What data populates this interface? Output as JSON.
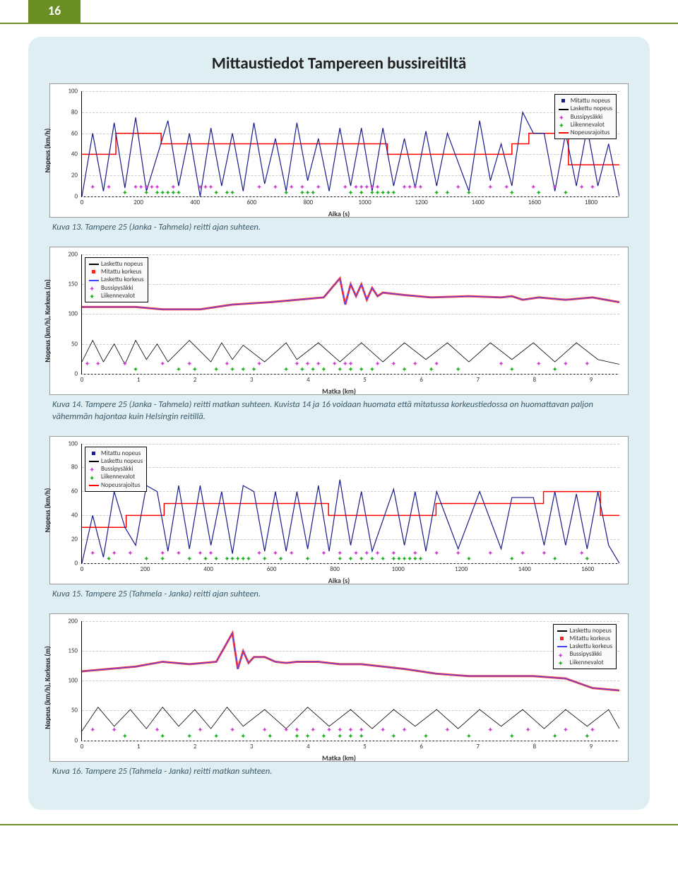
{
  "page_number": "16",
  "colors": {
    "page_accent": "#6b8e23",
    "panel_bg": "#dfeef2",
    "caption_color": "#3a5a6a",
    "speed_limit": "#ff0000",
    "measured_speed": "#1a1a8a",
    "calculated_speed": "#000000",
    "bus_stop": "#d040d0",
    "traffic_light": "#20b020",
    "measured_height": "#ff2020",
    "calculated_height": "#4040ff"
  },
  "title": "Mittaustiedot Tampereen bussireitiltä",
  "chart13": {
    "ylabel": "Nopeus (km/h)",
    "xlabel": "Aika (s)",
    "ylim": [
      0,
      100
    ],
    "ytick_step": 20,
    "xlim": [
      0,
      1900
    ],
    "xticks": [
      0,
      200,
      400,
      600,
      800,
      1000,
      1200,
      1400,
      1600,
      1800
    ],
    "legend_pos": "top-right",
    "legend": [
      {
        "type": "dot",
        "color": "#1a1a8a",
        "label": "Mitattu nopeus"
      },
      {
        "type": "line",
        "color": "#000000",
        "label": "Laskettu nopeus"
      },
      {
        "type": "star",
        "color": "#d040d0",
        "label": "Bussipysäkki"
      },
      {
        "type": "star",
        "color": "#20b020",
        "label": "Liikennevalot"
      },
      {
        "type": "line",
        "color": "#ff0000",
        "label": "Nopeusrajoitus"
      }
    ],
    "speed_limit_segments": [
      {
        "x0": 0,
        "x1": 120,
        "y": 40
      },
      {
        "x0": 120,
        "x1": 280,
        "y": 60
      },
      {
        "x0": 280,
        "x1": 1080,
        "y": 50
      },
      {
        "x0": 1080,
        "x1": 1520,
        "y": 40
      },
      {
        "x0": 1520,
        "x1": 1580,
        "y": 50
      },
      {
        "x0": 1580,
        "x1": 1720,
        "y": 60
      },
      {
        "x0": 1720,
        "x1": 1900,
        "y": 30
      }
    ],
    "speed_trace": "0,100 2,40 4,95 6,30 8,92 10,25 12,95 16,28 18,90 20,40 22,100 24,35 26,90 28,40 30,95 32,30 34,88 36,45 38,95 40,30 42,85 44,45 46,95 48,35 50,90 52,35 54,95 56,35 58,90 60,45 62,92 64,38 66,90 68,40 72,95 74,28 76,85 78,50 80,90 82,20 84,40 86,40 88,95 90,40 92,90 94,35 96,90 98,50 100,100",
    "bus_markers_pct": [
      2,
      5,
      10,
      11,
      12,
      13,
      14,
      17,
      22,
      23,
      24,
      33,
      36,
      39,
      41,
      44,
      49,
      51,
      52,
      53,
      54,
      55,
      60,
      61,
      62,
      63,
      70,
      76,
      79,
      84,
      88,
      93,
      95
    ],
    "light_markers_pct": [
      8,
      12,
      14,
      15,
      16,
      17,
      18,
      25,
      27,
      28,
      38,
      41,
      42,
      43,
      50,
      52,
      54,
      55,
      56,
      57,
      58,
      66,
      68,
      72,
      80,
      85,
      90
    ]
  },
  "caption13": "Kuva 13. Tampere 25 (Janka - Tahmela) reitti ajan suhteen.",
  "chart14": {
    "ylabel": "Nopeus (km/h), Korkeus (m)",
    "xlabel": "Matka (km)",
    "ylim": [
      0,
      200
    ],
    "ytick_step": 50,
    "xlim": [
      0,
      9.5
    ],
    "xticks": [
      0,
      1,
      2,
      3,
      4,
      5,
      6,
      7,
      8,
      9
    ],
    "legend_pos": "top-left",
    "legend": [
      {
        "type": "line",
        "color": "#000000",
        "label": "Laskettu nopeus"
      },
      {
        "type": "dot",
        "color": "#ff2020",
        "label": "Mitattu korkeus"
      },
      {
        "type": "line",
        "color": "#4040ff",
        "label": "Laskettu korkeus"
      },
      {
        "type": "star",
        "color": "#d040d0",
        "label": "Bussipysäkki"
      },
      {
        "type": "star",
        "color": "#20b020",
        "label": "Liikennevalot"
      }
    ],
    "height_trace": "0,44 5,44 10,44 15,46 22,46 28,42 35,40 40,38 45,36 48,20 49,42 50,25 51,35 52,25 53,38 54,28 55,35 56,32 60,34 65,36 72,35 78,36 80,35 82,38 85,36 90,38 95,36 100,40",
    "speed_trace": "0,90 2,72 4,90 6,75 8,92 10,72 12,88 14,75 16,90 20,72 24,90 26,74 28,88 30,76 34,90 38,74 40,88 44,74 48,90 52,74 56,90 60,74 64,88 68,74 72,90 76,74 80,88 84,74 88,90 92,74 96,88 100,92",
    "bus_markers_pct": [
      1,
      3,
      8,
      15,
      20,
      27,
      33,
      40,
      42,
      44,
      47,
      49,
      50,
      55,
      58,
      62,
      66,
      78,
      85,
      90,
      94
    ],
    "light_markers_pct": [
      10,
      18,
      21,
      25,
      28,
      30,
      32,
      38,
      41,
      43,
      45,
      48,
      50,
      52,
      54,
      60,
      65,
      70,
      80,
      88
    ]
  },
  "caption14": "Kuva 14. Tampere 25 (Janka - Tahmela) reitti matkan suhteen. Kuvista 14 ja 16 voidaan huomata että mitatussa korkeustiedossa on huomattavan paljon vähemmän hajontaa kuin Helsingin reitillä.",
  "chart15": {
    "ylabel": "Nopeus (km/h)",
    "xlabel": "Aika (s)",
    "ylim": [
      0,
      100
    ],
    "ytick_step": 20,
    "xlim": [
      0,
      1700
    ],
    "xticks": [
      0,
      200,
      400,
      600,
      800,
      1000,
      1200,
      1400,
      1600
    ],
    "legend_pos": "top-left",
    "legend": [
      {
        "type": "dot",
        "color": "#1a1a8a",
        "label": "Mitattu nopeus"
      },
      {
        "type": "line",
        "color": "#000000",
        "label": "Laskettu nopeus"
      },
      {
        "type": "star",
        "color": "#d040d0",
        "label": "Bussipysäkki"
      },
      {
        "type": "star",
        "color": "#20b020",
        "label": "Liikennevalot"
      },
      {
        "type": "line",
        "color": "#ff0000",
        "label": "Nopeusrajoitus"
      }
    ],
    "speed_limit_segments": [
      {
        "x0": 0,
        "x1": 140,
        "y": 30
      },
      {
        "x0": 140,
        "x1": 260,
        "y": 40
      },
      {
        "x0": 260,
        "x1": 780,
        "y": 50
      },
      {
        "x0": 780,
        "x1": 1120,
        "y": 40
      },
      {
        "x0": 1120,
        "x1": 1460,
        "y": 50
      },
      {
        "x0": 1460,
        "x1": 1640,
        "y": 60
      },
      {
        "x0": 1640,
        "x1": 1700,
        "y": 40
      }
    ],
    "speed_trace": "0,100 2,60 4,95 6,40 8,70 10,85 12,35 14,40 16,90 18,35 20,88 22,35 24,85 26,40 28,92 30,35 32,40 34,90 36,40 38,90 40,40 42,88 44,35 46,90 48,30 50,85 52,40 54,90 58,38 60,85 62,40 64,90 66,40 70,88 74,40 78,88 80,45 84,45 86,85 88,40 90,85 92,42 94,88 96,40 98,85 100,100",
    "bus_markers_pct": [
      2,
      6,
      9,
      15,
      18,
      22,
      24,
      33,
      36,
      39,
      45,
      48,
      51,
      53,
      55,
      58,
      62,
      66,
      70,
      76,
      82,
      86,
      93
    ],
    "light_markers_pct": [
      5,
      12,
      15,
      20,
      23,
      25,
      27,
      28,
      29,
      30,
      31,
      34,
      37,
      42,
      48,
      50,
      52,
      54,
      56,
      58,
      59,
      60,
      61,
      62,
      63,
      72,
      80,
      88,
      94
    ]
  },
  "caption15": "Kuva 15. Tampere 25 (Tahmela - Janka) reitti ajan suhteen.",
  "chart16": {
    "ylabel": "Nopeus (km/h), Korkeus (m)",
    "xlabel": "Matka (km)",
    "ylim": [
      0,
      200
    ],
    "ytick_step": 50,
    "xlim": [
      0,
      9.5
    ],
    "xticks": [
      0,
      1,
      2,
      3,
      4,
      5,
      6,
      7,
      8,
      9
    ],
    "legend_pos": "top-right",
    "legend": [
      {
        "type": "line",
        "color": "#000000",
        "label": "Laskettu nopeus"
      },
      {
        "type": "dot",
        "color": "#ff2020",
        "label": "Mitattu korkeus"
      },
      {
        "type": "line",
        "color": "#4040ff",
        "label": "Laskettu korkeus"
      },
      {
        "type": "star",
        "color": "#d040d0",
        "label": "Bussipysäkki"
      },
      {
        "type": "star",
        "color": "#20b020",
        "label": "Liikennevalot"
      }
    ],
    "height_trace": "0,42 5,40 10,38 15,34 20,36 25,34 28,10 29,40 30,25 31,35 32,30 34,30 36,34 38,35 40,34 44,34 48,36 52,36 56,38 60,40 66,44 72,46 78,46 84,46 90,48 95,56 100,58",
    "speed_trace": "0,92 3,72 6,88 9,74 12,90 15,72 18,88 21,74 24,90 27,72 30,88 34,74 38,90 42,72 46,88 50,74 54,90 58,74 62,88 66,74 70,90 74,74 78,88 82,74 86,90 90,74 94,88 98,74 100,90",
    "bus_markers_pct": [
      2,
      6,
      14,
      22,
      28,
      34,
      38,
      40,
      43,
      46,
      48,
      50,
      52,
      56,
      60,
      68,
      76,
      83,
      90,
      95
    ],
    "light_markers_pct": [
      8,
      15,
      20,
      25,
      30,
      35,
      40,
      42,
      45,
      48,
      50,
      52,
      58,
      64,
      72,
      80,
      88,
      94
    ]
  },
  "caption16": "Kuva 16. Tampere 25 (Tahmela - Janka) reitti matkan suhteen."
}
